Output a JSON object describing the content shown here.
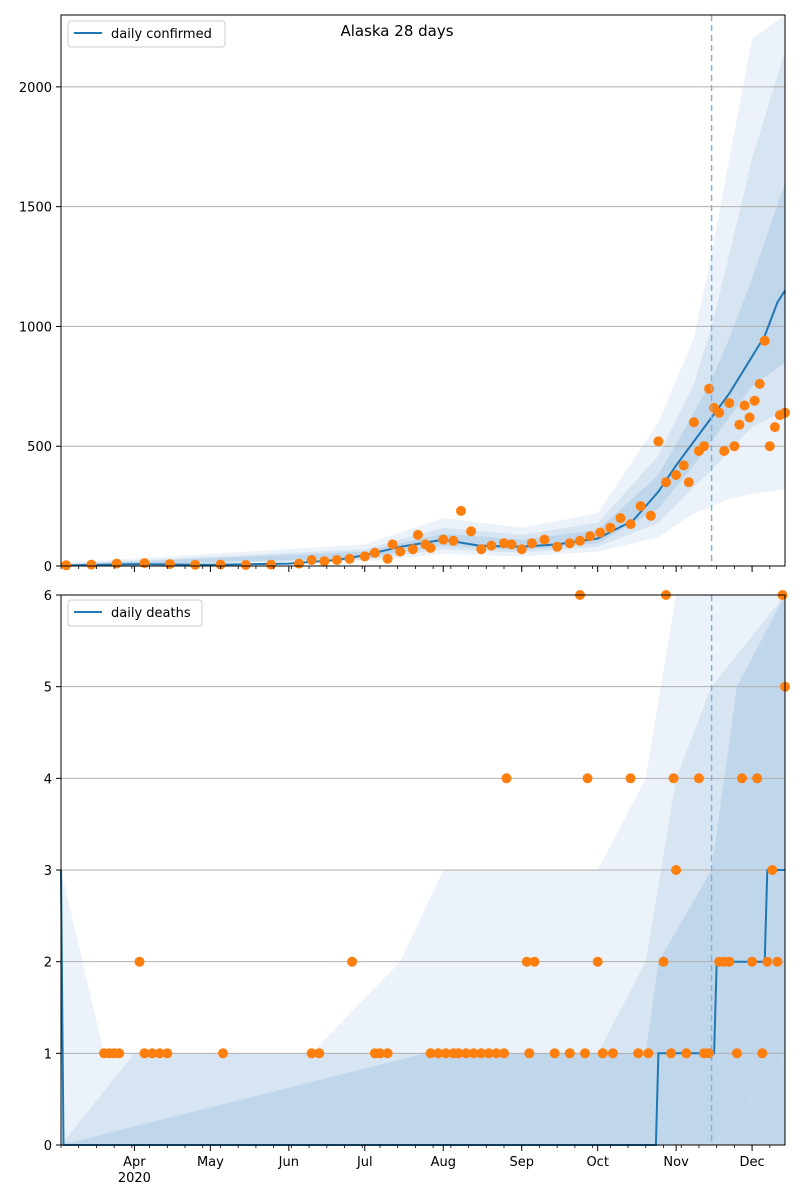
{
  "figure": {
    "title": "Alaska 28 days"
  },
  "chart_data": [
    {
      "type": "line",
      "title": "Alaska 28 days",
      "legend": {
        "entries": [
          "daily confirmed"
        ],
        "placement": "top-left"
      },
      "ylim": [
        0,
        2300
      ],
      "yticks": [
        0,
        500,
        1000,
        1500,
        2000
      ],
      "grid": "horizontal",
      "xlim": [
        "2020-03-03",
        "2020-12-14"
      ],
      "forecast_start": "2020-11-15",
      "series": [
        {
          "name": "daily confirmed",
          "kind": "model mean line",
          "color": "#1f77b4",
          "x": [
            "2020-03-03",
            "2020-04-01",
            "2020-05-01",
            "2020-06-01",
            "2020-06-20",
            "2020-07-01",
            "2020-07-15",
            "2020-08-01",
            "2020-08-15",
            "2020-09-01",
            "2020-09-15",
            "2020-10-01",
            "2020-10-15",
            "2020-10-25",
            "2020-11-01",
            "2020-11-08",
            "2020-11-15",
            "2020-11-22",
            "2020-11-29",
            "2020-12-06",
            "2020-12-11",
            "2020-12-14"
          ],
          "values": [
            2,
            8,
            5,
            10,
            25,
            45,
            80,
            110,
            85,
            80,
            90,
            115,
            190,
            310,
            420,
            520,
            620,
            720,
            840,
            960,
            1100,
            1150
          ]
        },
        {
          "name": "observed",
          "kind": "scatter",
          "color": "#ff7f0e",
          "x": [
            "2020-03-05",
            "2020-03-15",
            "2020-03-25",
            "2020-04-05",
            "2020-04-15",
            "2020-04-25",
            "2020-05-05",
            "2020-05-15",
            "2020-05-25",
            "2020-06-05",
            "2020-06-10",
            "2020-06-15",
            "2020-06-20",
            "2020-06-25",
            "2020-07-01",
            "2020-07-05",
            "2020-07-10",
            "2020-07-12",
            "2020-07-15",
            "2020-07-20",
            "2020-07-22",
            "2020-07-25",
            "2020-07-27",
            "2020-08-01",
            "2020-08-05",
            "2020-08-08",
            "2020-08-12",
            "2020-08-16",
            "2020-08-20",
            "2020-08-25",
            "2020-08-28",
            "2020-09-01",
            "2020-09-05",
            "2020-09-10",
            "2020-09-15",
            "2020-09-20",
            "2020-09-24",
            "2020-09-28",
            "2020-10-02",
            "2020-10-06",
            "2020-10-10",
            "2020-10-14",
            "2020-10-18",
            "2020-10-22",
            "2020-10-25",
            "2020-10-28",
            "2020-11-01",
            "2020-11-04",
            "2020-11-06",
            "2020-11-08",
            "2020-11-10",
            "2020-11-12",
            "2020-11-14",
            "2020-11-16",
            "2020-11-18",
            "2020-11-20",
            "2020-11-22",
            "2020-11-24",
            "2020-11-26",
            "2020-11-28",
            "2020-11-30",
            "2020-12-02",
            "2020-12-04",
            "2020-12-06",
            "2020-12-08",
            "2020-12-10",
            "2020-12-12",
            "2020-12-14"
          ],
          "values": [
            3,
            6,
            10,
            12,
            8,
            5,
            6,
            4,
            6,
            10,
            25,
            20,
            25,
            30,
            40,
            55,
            30,
            90,
            60,
            70,
            130,
            90,
            75,
            110,
            105,
            230,
            145,
            70,
            85,
            95,
            90,
            70,
            95,
            110,
            80,
            95,
            105,
            125,
            140,
            160,
            200,
            175,
            250,
            210,
            520,
            350,
            380,
            420,
            350,
            600,
            480,
            500,
            740,
            660,
            640,
            480,
            680,
            500,
            590,
            670,
            620,
            690,
            760,
            940,
            500,
            580,
            630,
            640
          ]
        }
      ],
      "bands": [
        {
          "name": "outer interval",
          "x": [
            "2020-03-03",
            "2020-07-01",
            "2020-08-01",
            "2020-09-01",
            "2020-10-01",
            "2020-10-25",
            "2020-11-08",
            "2020-11-15",
            "2020-11-22",
            "2020-12-01",
            "2020-12-14"
          ],
          "lower": [
            0,
            20,
            50,
            40,
            60,
            120,
            220,
            250,
            280,
            300,
            320
          ],
          "upper": [
            12,
            90,
            200,
            160,
            220,
            600,
            950,
            1300,
            1700,
            2200,
            2600
          ]
        },
        {
          "name": "middle interval",
          "x": [
            "2020-03-03",
            "2020-07-01",
            "2020-08-01",
            "2020-09-01",
            "2020-10-01",
            "2020-10-25",
            "2020-11-08",
            "2020-11-15",
            "2020-11-22",
            "2020-12-01",
            "2020-12-14"
          ],
          "lower": [
            0,
            25,
            70,
            55,
            80,
            180,
            330,
            400,
            480,
            580,
            650
          ],
          "upper": [
            8,
            70,
            160,
            130,
            180,
            460,
            760,
            1000,
            1300,
            1700,
            2150
          ]
        },
        {
          "name": "inner interval",
          "x": [
            "2020-03-03",
            "2020-07-01",
            "2020-08-01",
            "2020-09-01",
            "2020-10-01",
            "2020-10-25",
            "2020-11-08",
            "2020-11-15",
            "2020-11-22",
            "2020-12-01",
            "2020-12-14"
          ],
          "lower": [
            1,
            32,
            85,
            65,
            95,
            240,
            420,
            520,
            620,
            750,
            850
          ],
          "upper": [
            5,
            60,
            135,
            110,
            150,
            380,
            640,
            780,
            950,
            1200,
            1600
          ]
        }
      ]
    },
    {
      "type": "line",
      "legend": {
        "entries": [
          "daily deaths"
        ],
        "placement": "top-left"
      },
      "ylim": [
        0,
        6
      ],
      "yticks": [
        0,
        1,
        2,
        3,
        4,
        5,
        6
      ],
      "grid": "horizontal",
      "xlim": [
        "2020-03-03",
        "2020-12-14"
      ],
      "xticks": [
        "Apr",
        "May",
        "Jun",
        "Jul",
        "Aug",
        "Sep",
        "Oct",
        "Nov",
        "Dec"
      ],
      "xtick_year": "2020",
      "forecast_start": "2020-11-15",
      "series": [
        {
          "name": "daily deaths",
          "kind": "model mean line",
          "color": "#1f77b4",
          "x": [
            "2020-03-03",
            "2020-03-04",
            "2020-10-24",
            "2020-10-25",
            "2020-11-16",
            "2020-11-17",
            "2020-12-06",
            "2020-12-07",
            "2020-12-14"
          ],
          "values": [
            3,
            0,
            0,
            1,
            1,
            2,
            2,
            3,
            3
          ]
        },
        {
          "name": "observed",
          "kind": "scatter",
          "color": "#ff7f0e",
          "x": [
            "2020-03-20",
            "2020-03-22",
            "2020-03-24",
            "2020-03-26",
            "2020-04-03",
            "2020-04-05",
            "2020-04-08",
            "2020-04-11",
            "2020-04-14",
            "2020-05-06",
            "2020-06-10",
            "2020-06-13",
            "2020-06-26",
            "2020-07-05",
            "2020-07-07",
            "2020-07-10",
            "2020-07-27",
            "2020-07-30",
            "2020-08-02",
            "2020-08-05",
            "2020-08-07",
            "2020-08-10",
            "2020-08-13",
            "2020-08-16",
            "2020-08-19",
            "2020-08-22",
            "2020-08-25",
            "2020-08-26",
            "2020-09-03",
            "2020-09-04",
            "2020-09-06",
            "2020-09-14",
            "2020-09-20",
            "2020-09-24",
            "2020-09-26",
            "2020-09-27",
            "2020-10-01",
            "2020-10-03",
            "2020-10-07",
            "2020-10-14",
            "2020-10-17",
            "2020-10-21",
            "2020-10-27",
            "2020-10-28",
            "2020-10-30",
            "2020-10-31",
            "2020-11-01",
            "2020-11-05",
            "2020-11-10",
            "2020-11-12",
            "2020-11-14",
            "2020-11-18",
            "2020-11-20",
            "2020-11-22",
            "2020-11-25",
            "2020-11-27",
            "2020-12-01",
            "2020-12-03",
            "2020-12-05",
            "2020-12-07",
            "2020-12-09",
            "2020-12-11",
            "2020-12-13",
            "2020-12-14"
          ],
          "values": [
            1,
            1,
            1,
            1,
            2,
            1,
            1,
            1,
            1,
            1,
            1,
            1,
            2,
            1,
            1,
            1,
            1,
            1,
            1,
            1,
            1,
            1,
            1,
            1,
            1,
            1,
            1,
            4,
            2,
            1,
            2,
            1,
            1,
            6,
            1,
            4,
            2,
            1,
            1,
            4,
            1,
            1,
            2,
            6,
            1,
            4,
            3,
            1,
            4,
            1,
            1,
            2,
            2,
            2,
            1,
            4,
            2,
            4,
            1,
            2,
            3,
            2,
            6,
            5
          ]
        }
      ],
      "bands": [
        {
          "name": "outer interval",
          "x": [
            "2020-03-03",
            "2020-03-20",
            "2020-06-10",
            "2020-07-15",
            "2020-08-01",
            "2020-09-15",
            "2020-10-01",
            "2020-10-20",
            "2020-11-01",
            "2020-11-15",
            "2020-12-14"
          ],
          "lower": [
            0,
            0,
            0,
            0,
            0,
            0,
            0,
            0,
            0,
            0,
            0
          ],
          "upper": [
            3,
            1,
            1,
            2,
            3,
            3,
            3,
            4,
            6,
            6,
            6
          ]
        },
        {
          "name": "middle interval",
          "x": [
            "2020-03-03",
            "2020-04-01",
            "2020-06-10",
            "2020-07-15",
            "2020-08-01",
            "2020-09-15",
            "2020-10-01",
            "2020-10-20",
            "2020-11-01",
            "2020-11-15",
            "2020-12-14"
          ],
          "lower": [
            0,
            0,
            0,
            0,
            0,
            0,
            0,
            0,
            0,
            0,
            1
          ],
          "upper": [
            0,
            1,
            1,
            1,
            1,
            1,
            1,
            2,
            4,
            5,
            6
          ]
        },
        {
          "name": "inner interval",
          "x": [
            "2020-03-03",
            "2020-07-25",
            "2020-10-20",
            "2020-10-25",
            "2020-11-15",
            "2020-11-25",
            "2020-12-14"
          ],
          "lower": [
            0,
            0,
            0,
            0,
            0,
            0,
            0
          ],
          "upper": [
            0,
            1,
            1,
            2,
            3,
            5,
            6
          ]
        }
      ]
    }
  ]
}
